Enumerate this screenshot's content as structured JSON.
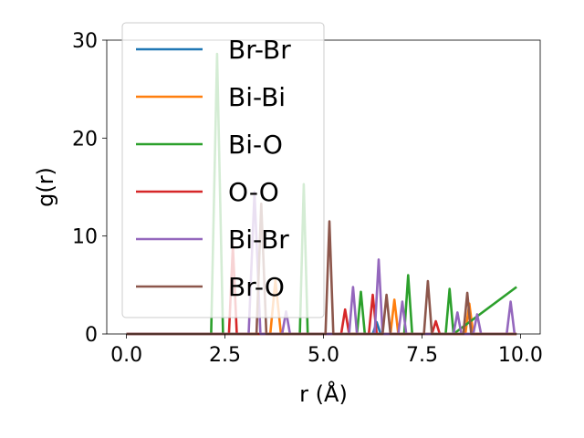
{
  "chart_data": {
    "type": "line",
    "title": "",
    "xlabel": "r (Å)",
    "ylabel": "g(r)",
    "xlim": [
      -0.5,
      10.5
    ],
    "ylim": [
      0,
      30
    ],
    "xticks": [
      "0.0",
      "2.5",
      "5.0",
      "7.5",
      "10.0"
    ],
    "yticks": [
      "0",
      "10",
      "20",
      "30"
    ],
    "grid": false,
    "legend_position": "upper-left",
    "series": [
      {
        "name": "Br-Br",
        "color": "#1f77b4",
        "points": [
          [
            0.0,
            0
          ],
          [
            6.25,
            0
          ],
          [
            6.35,
            1.2
          ],
          [
            6.45,
            0
          ],
          [
            9.9,
            0
          ]
        ]
      },
      {
        "name": "Bi-Bi",
        "color": "#ff7f0e",
        "points": [
          [
            0.0,
            0
          ],
          [
            3.65,
            0
          ],
          [
            3.78,
            5.5
          ],
          [
            3.92,
            0
          ],
          [
            6.7,
            0
          ],
          [
            6.8,
            3.5
          ],
          [
            6.9,
            0
          ],
          [
            8.6,
            0
          ],
          [
            8.7,
            3.1
          ],
          [
            8.8,
            0
          ],
          [
            9.9,
            0
          ]
        ]
      },
      {
        "name": "Bi-O",
        "color": "#2ca02c",
        "points": [
          [
            0.0,
            0
          ],
          [
            2.15,
            0
          ],
          [
            2.3,
            28.6
          ],
          [
            2.45,
            0
          ],
          [
            4.4,
            0
          ],
          [
            4.5,
            15.3
          ],
          [
            4.6,
            0
          ],
          [
            5.85,
            0
          ],
          [
            5.95,
            4.3
          ],
          [
            6.05,
            0
          ],
          [
            7.05,
            0
          ],
          [
            7.15,
            6.0
          ],
          [
            7.25,
            0
          ],
          [
            8.1,
            0
          ],
          [
            8.2,
            4.6
          ],
          [
            8.3,
            0
          ],
          [
            9.9,
            4.8
          ]
        ]
      },
      {
        "name": "O-O",
        "color": "#d62728",
        "points": [
          [
            0.0,
            0
          ],
          [
            2.6,
            0
          ],
          [
            2.7,
            9.0
          ],
          [
            2.8,
            0
          ],
          [
            5.45,
            0
          ],
          [
            5.55,
            2.5
          ],
          [
            5.65,
            0
          ],
          [
            6.15,
            0
          ],
          [
            6.25,
            4.0
          ],
          [
            6.35,
            0
          ],
          [
            7.75,
            0
          ],
          [
            7.85,
            1.3
          ],
          [
            7.95,
            0
          ],
          [
            9.9,
            0
          ]
        ]
      },
      {
        "name": "Bi-Br",
        "color": "#9467bd",
        "points": [
          [
            0.0,
            0
          ],
          [
            3.1,
            0
          ],
          [
            3.25,
            14.5
          ],
          [
            3.4,
            0
          ],
          [
            3.95,
            0
          ],
          [
            4.05,
            2.3
          ],
          [
            4.15,
            0
          ],
          [
            5.65,
            0
          ],
          [
            5.75,
            4.8
          ],
          [
            5.85,
            0
          ],
          [
            6.3,
            0
          ],
          [
            6.4,
            7.6
          ],
          [
            6.5,
            0
          ],
          [
            6.9,
            0
          ],
          [
            7.0,
            3.3
          ],
          [
            7.1,
            0
          ],
          [
            8.3,
            0
          ],
          [
            8.4,
            2.2
          ],
          [
            8.5,
            0
          ],
          [
            8.8,
            0
          ],
          [
            8.9,
            2.0
          ],
          [
            9.0,
            0
          ],
          [
            9.65,
            0
          ],
          [
            9.75,
            3.3
          ],
          [
            9.85,
            0
          ]
        ]
      },
      {
        "name": "Br-O",
        "color": "#8c564b",
        "points": [
          [
            0.0,
            0
          ],
          [
            3.3,
            0
          ],
          [
            3.42,
            13.3
          ],
          [
            3.55,
            0
          ],
          [
            5.05,
            0
          ],
          [
            5.15,
            11.5
          ],
          [
            5.25,
            0
          ],
          [
            6.5,
            0
          ],
          [
            6.6,
            4.0
          ],
          [
            6.7,
            0
          ],
          [
            7.55,
            0
          ],
          [
            7.65,
            5.4
          ],
          [
            7.75,
            0
          ],
          [
            8.55,
            0
          ],
          [
            8.65,
            4.2
          ],
          [
            8.75,
            0
          ],
          [
            9.9,
            0
          ]
        ]
      }
    ]
  }
}
